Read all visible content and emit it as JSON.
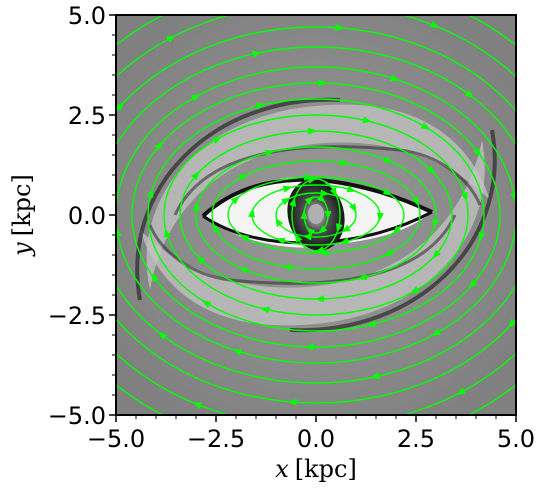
{
  "chart_data": {
    "type": "streamplot",
    "title": "",
    "xlabel_var": "x",
    "xlabel_unit": "[kpc]",
    "ylabel_var": "y",
    "ylabel_unit": "[kpc]",
    "xlim": [
      -5.0,
      5.0
    ],
    "ylim": [
      -5.0,
      5.0
    ],
    "xticks": [
      -5.0,
      -2.5,
      0.0,
      2.5,
      5.0
    ],
    "xtick_labels": [
      "−5.0",
      "−2.5",
      "0.0",
      "2.5",
      "5.0"
    ],
    "yticks": [
      -5.0,
      -2.5,
      0.0,
      2.5,
      5.0
    ],
    "ytick_labels": [
      "−5.0",
      "−2.5",
      "0.0",
      "2.5",
      "5.0"
    ],
    "background": "grayscale gas density map with bar, dust lanes and spiral arms",
    "streamline_color": "#00ff00",
    "grid": false,
    "legend": "none",
    "streamlines": [
      {
        "a": 0.3,
        "b": 0.45,
        "angle": 0
      },
      {
        "a": 0.6,
        "b": 0.9,
        "angle": 0
      },
      {
        "a": 1.0,
        "b": 0.55,
        "angle": 0
      },
      {
        "a": 1.6,
        "b": 0.75,
        "angle": 0
      },
      {
        "a": 2.2,
        "b": 0.95,
        "angle": 0
      },
      {
        "a": 2.6,
        "b": 1.35,
        "angle": 0
      },
      {
        "a": 3.0,
        "b": 1.7,
        "angle": 0
      },
      {
        "a": 3.4,
        "b": 2.1,
        "angle": 0
      },
      {
        "a": 3.8,
        "b": 2.5,
        "angle": 0
      },
      {
        "a": 4.2,
        "b": 2.9,
        "angle": 0
      },
      {
        "a": 4.6,
        "b": 3.3,
        "angle": 0
      },
      {
        "a": 5.0,
        "b": 3.7,
        "angle": 0
      },
      {
        "a": 5.5,
        "b": 4.2,
        "angle": 0
      },
      {
        "a": 6.0,
        "b": 4.7,
        "angle": 0
      },
      {
        "a": 6.6,
        "b": 5.3,
        "angle": 0
      },
      {
        "a": 7.2,
        "b": 5.9,
        "angle": 0
      }
    ]
  }
}
